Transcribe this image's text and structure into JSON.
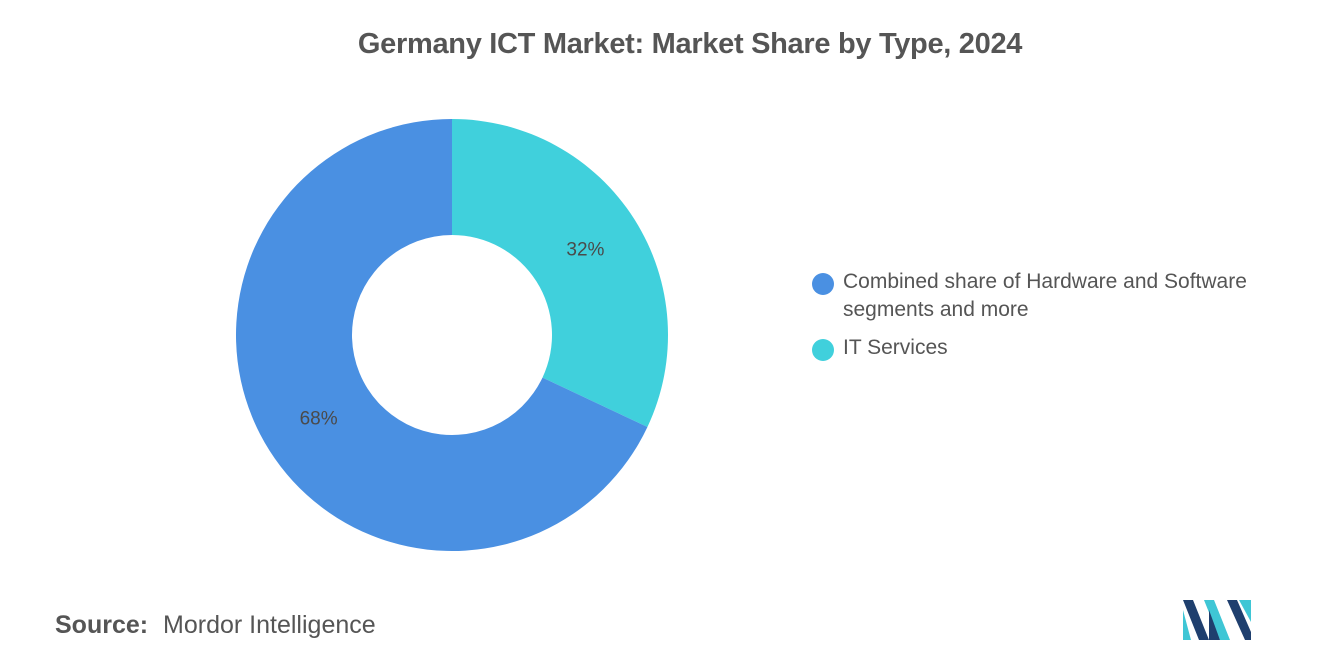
{
  "chart_data": {
    "type": "pie",
    "donut": true,
    "title": "Germany ICT Market: Market Share by Type, 2024",
    "slices": [
      {
        "label": "IT Services",
        "value": 32,
        "display": "32%",
        "color": "#40D0DC"
      },
      {
        "label": "Combined share of Hardware and Software segments and more",
        "value": 68,
        "display": "68%",
        "color": "#4A90E2"
      }
    ],
    "legend": {
      "placement": "right",
      "entries": [
        {
          "name": "Combined share of Hardware and Software segments and more",
          "color": "#4A90E2"
        },
        {
          "name": "IT Services",
          "color": "#40D0DC"
        }
      ]
    }
  },
  "source": {
    "label": "Source:",
    "value": "Mordor Intelligence"
  },
  "logo": {
    "icon": "mordor-intelligence-logo",
    "colors": [
      "#1F3F6E",
      "#3FC6D5"
    ]
  }
}
